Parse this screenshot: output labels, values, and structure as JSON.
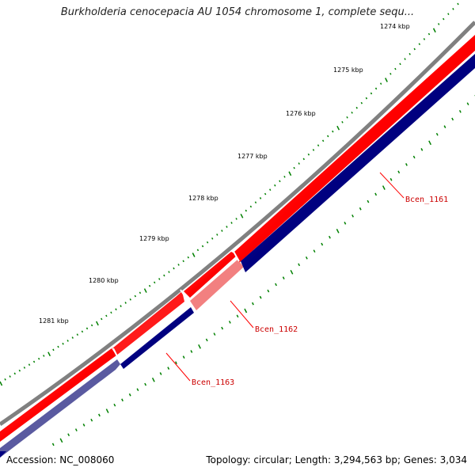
{
  "title": "Burkholderia cenocepacia AU 1054 chromosome 1, complete sequ...",
  "footer": {
    "accession": "Accession: NC_008060",
    "summary": "Topology: circular; Length: 3,294,563 bp; Genes: 3,034"
  },
  "ticks": [
    {
      "label": "1274 kbp"
    },
    {
      "label": "1275 kbp"
    },
    {
      "label": "1276 kbp"
    },
    {
      "label": "1277 kbp"
    },
    {
      "label": "1278 kbp"
    },
    {
      "label": "1279 kbp"
    },
    {
      "label": "1280 kbp"
    },
    {
      "label": "1281 kbp"
    }
  ],
  "genes": [
    {
      "name": "Bcen_1161",
      "strand": "forward",
      "selected": false
    },
    {
      "name": "Bcen_1162",
      "strand": "forward",
      "selected": true
    },
    {
      "name": "Bcen_1163",
      "strand": "forward",
      "selected": false
    }
  ],
  "colors": {
    "forward_strand": "#ff0000",
    "reverse_strand": "#000080",
    "backbone": "#808080",
    "tick": "#008000",
    "label_line": "#ff0000",
    "highlight": "#f28080",
    "highlight_reverse": "#6a6aaa"
  }
}
